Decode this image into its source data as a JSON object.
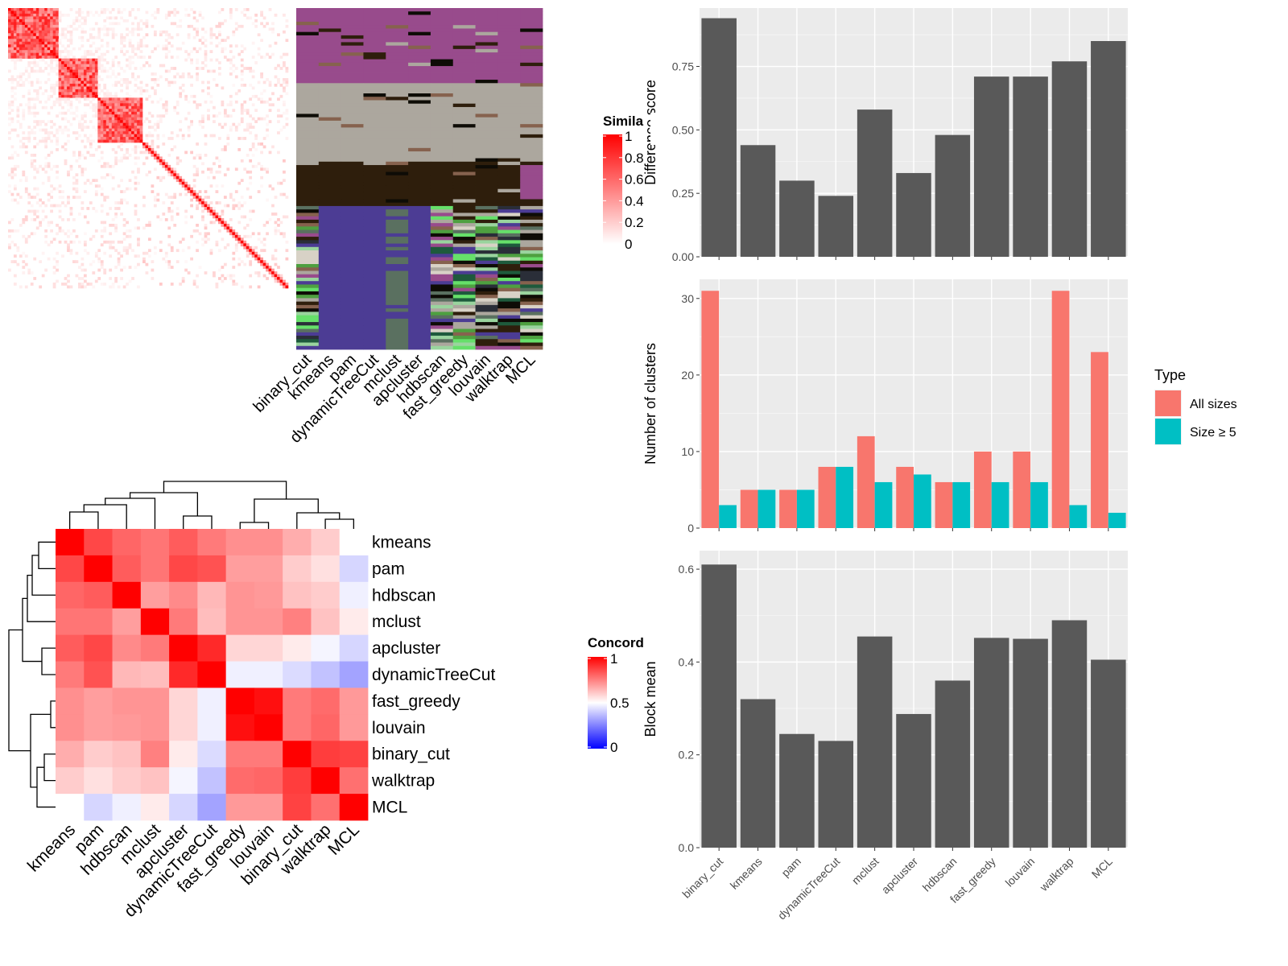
{
  "methods_order": [
    "binary_cut",
    "kmeans",
    "pam",
    "dynamicTreeCut",
    "mclust",
    "apcluster",
    "hdbscan",
    "fast_greedy",
    "louvain",
    "walktrap",
    "MCL"
  ],
  "similarity_panel": {
    "legend_title": "Simila",
    "legend_ticks": [
      "1",
      "0.8",
      "0.6",
      "0.4",
      "0.2",
      "0"
    ],
    "column_labels": [
      "binary_cut",
      "kmeans",
      "pam",
      "dynamicTreeCut",
      "mclust",
      "apcluster",
      "hdbscan",
      "fast_greedy",
      "louvain",
      "walktrap",
      "MCL"
    ],
    "colors": {
      "high": "#ff0000",
      "low": "#ffffff"
    }
  },
  "concordance_panel": {
    "legend_title": "Concord",
    "legend_ticks": [
      "1",
      "0.5",
      "0"
    ],
    "row_labels": [
      "kmeans",
      "pam",
      "hdbscan",
      "mclust",
      "apcluster",
      "dynamicTreeCut",
      "fast_greedy",
      "louvain",
      "binary_cut",
      "walktrap",
      "MCL"
    ],
    "col_labels": [
      "kmeans",
      "pam",
      "hdbscan",
      "mclust",
      "apcluster",
      "dynamicTreeCut",
      "fast_greedy",
      "louvain",
      "binary_cut",
      "walktrap",
      "MCL"
    ],
    "colors": {
      "high": "#ff0000",
      "mid": "#ffffff",
      "low": "#0000ff"
    }
  },
  "chart_data": [
    {
      "type": "bar",
      "categories": [
        "binary_cut",
        "kmeans",
        "pam",
        "dynamicTreeCut",
        "mclust",
        "apcluster",
        "hdbscan",
        "fast_greedy",
        "louvain",
        "walktrap",
        "MCL"
      ],
      "values": [
        0.94,
        0.44,
        0.3,
        0.24,
        0.58,
        0.33,
        0.48,
        0.71,
        0.71,
        0.77,
        0.85
      ],
      "ylabel": "Difference score",
      "ylim": [
        0,
        0.98
      ],
      "yticks": [
        "0.00",
        "0.25",
        "0.50",
        "0.75"
      ],
      "color": "#595959"
    },
    {
      "type": "bar",
      "categories": [
        "binary_cut",
        "kmeans",
        "pam",
        "dynamicTreeCut",
        "mclust",
        "apcluster",
        "hdbscan",
        "fast_greedy",
        "louvain",
        "walktrap",
        "MCL"
      ],
      "series": [
        {
          "name": "All sizes",
          "values": [
            31,
            5,
            5,
            8,
            12,
            8,
            6,
            10,
            10,
            31,
            23
          ],
          "color": "#f8766d"
        },
        {
          "name": "Size ≥ 5",
          "values": [
            3,
            5,
            5,
            8,
            6,
            7,
            6,
            6,
            6,
            3,
            2
          ],
          "color": "#00bfc4"
        }
      ],
      "ylabel": "Number of clusters",
      "ylim": [
        0,
        32.5
      ],
      "yticks": [
        "0",
        "10",
        "20",
        "30"
      ],
      "legend_title": "Type",
      "legend_position": "right"
    },
    {
      "type": "bar",
      "categories": [
        "binary_cut",
        "kmeans",
        "pam",
        "dynamicTreeCut",
        "mclust",
        "apcluster",
        "hdbscan",
        "fast_greedy",
        "louvain",
        "walktrap",
        "MCL"
      ],
      "values": [
        0.61,
        0.32,
        0.245,
        0.23,
        0.455,
        0.288,
        0.36,
        0.452,
        0.45,
        0.49,
        0.405
      ],
      "ylabel": "Block mean",
      "ylim": [
        0,
        0.64
      ],
      "yticks": [
        "0.0",
        "0.2",
        "0.4",
        "0.6"
      ],
      "xticks": [
        "binary_cut",
        "kmeans",
        "pam",
        "dynamicTreeCut",
        "mclust",
        "apcluster",
        "hdbscan",
        "fast_greedy",
        "louvain",
        "walktrap",
        "MCL"
      ],
      "color": "#595959"
    }
  ]
}
